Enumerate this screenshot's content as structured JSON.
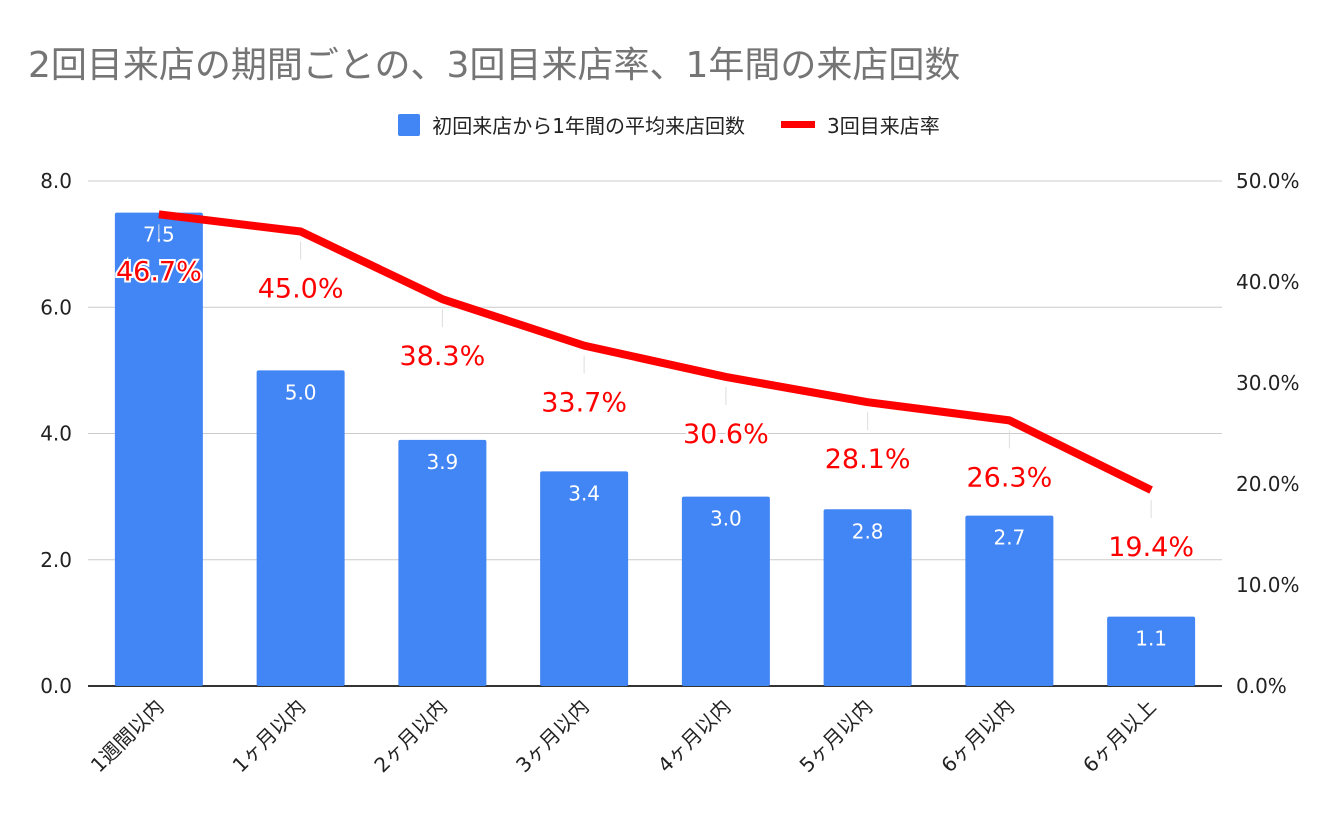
{
  "chart_data": {
    "type": "bar+line",
    "title": "2回目来店の期間ごとの、3回目来店率、1年間の来店回数",
    "categories": [
      "1週間以内",
      "1ヶ月以内",
      "2ヶ月以内",
      "3ヶ月以内",
      "4ヶ月以内",
      "5ヶ月以内",
      "6ヶ月以内",
      "6ヶ月以上"
    ],
    "series": [
      {
        "name": "初回来店から1年間の平均来店回数",
        "type": "bar",
        "axis": "left",
        "color": "#4285f4",
        "values": [
          7.5,
          5.0,
          3.9,
          3.4,
          3.0,
          2.8,
          2.7,
          1.1
        ],
        "labels": [
          "7.5",
          "5.0",
          "3.9",
          "3.4",
          "3.0",
          "2.8",
          "2.7",
          "1.1"
        ]
      },
      {
        "name": "3回目来店率",
        "type": "line",
        "axis": "right",
        "color": "#ff0000",
        "values": [
          46.7,
          45.0,
          38.3,
          33.7,
          30.6,
          28.1,
          26.3,
          19.4
        ],
        "labels": [
          "46.7%",
          "45.0%",
          "38.3%",
          "33.7%",
          "30.6%",
          "28.1%",
          "26.3%",
          "19.4%"
        ]
      }
    ],
    "y_left": {
      "lim": [
        0,
        8
      ],
      "ticks": [
        "0.0",
        "2.0",
        "4.0",
        "6.0",
        "8.0"
      ]
    },
    "y_right": {
      "lim": [
        0,
        50
      ],
      "ticks": [
        "0.0%",
        "10.0%",
        "20.0%",
        "30.0%",
        "40.0%",
        "50.0%"
      ]
    },
    "grid": true,
    "legend": "top"
  }
}
